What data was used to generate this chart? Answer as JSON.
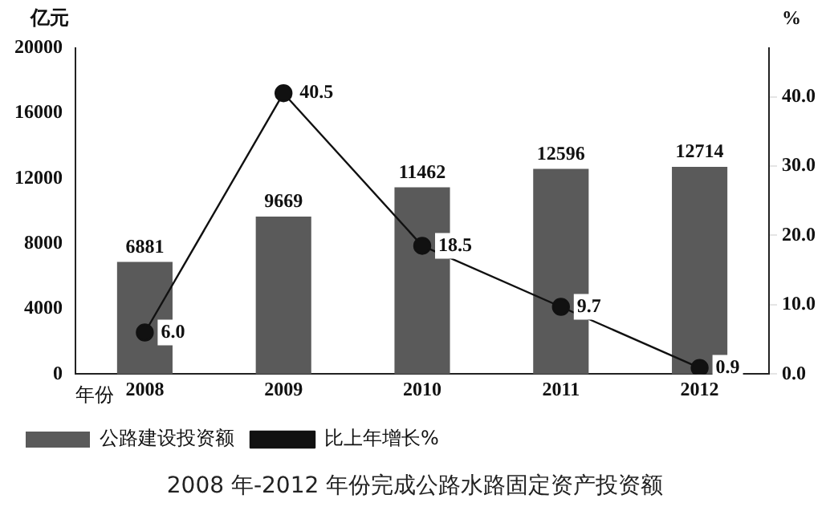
{
  "chart_data": {
    "type": "bar",
    "title": "2008 年-2012 年份完成公路水路固定资产投资额",
    "xlabel": "年份",
    "ylabel": "亿元",
    "y2label": "%",
    "categories": [
      "2008",
      "2009",
      "2010",
      "2011",
      "2012"
    ],
    "series": [
      {
        "name": "公路建设投资额",
        "color": "#5a5a5a",
        "values": [
          6881,
          9669,
          11462,
          12596,
          12714
        ],
        "value_labels": [
          "6881",
          "9669",
          "11462",
          "12596",
          "12714"
        ]
      },
      {
        "name": "比上年增长%",
        "type": "line",
        "axis": "y2",
        "color": "#111111",
        "marker": "circle",
        "values": [
          6.0,
          40.5,
          18.5,
          9.7,
          0.9
        ],
        "value_labels": [
          "6.0",
          "40.5",
          "18.5",
          "9.7",
          "0.9"
        ]
      }
    ],
    "ylim": [
      0,
      20000
    ],
    "yticks": [
      0,
      4000,
      8000,
      12000,
      16000,
      20000
    ],
    "y2lim": [
      0,
      47
    ],
    "y2ticks": [
      {
        "value": 0,
        "label": "0.0"
      },
      {
        "value": 10,
        "label": "10.0"
      },
      {
        "value": 20,
        "label": "20.0"
      },
      {
        "value": 30,
        "label": "30.0"
      },
      {
        "value": 40,
        "label": "40.0"
      }
    ],
    "grid": false,
    "legend": "bottom"
  }
}
